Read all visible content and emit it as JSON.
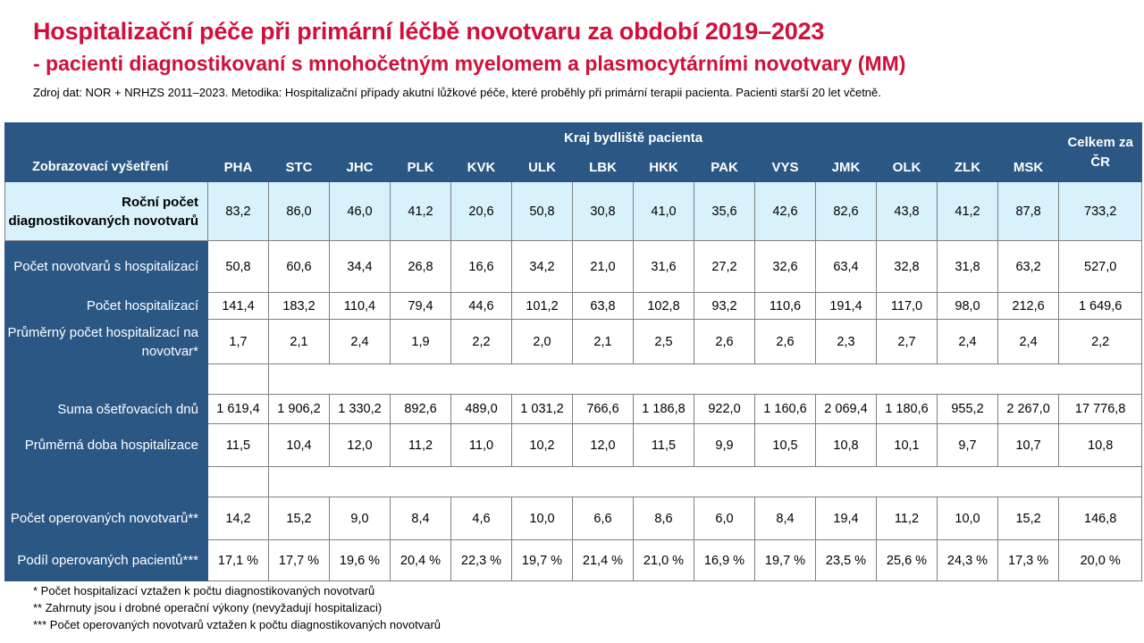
{
  "title": "Hospitalizační péče při primární léčbě novotvaru za období 2019–2023",
  "subtitle": "- pacienti diagnostikovaní s mnohočetným myelomem a plasmocytárními novotvary (MM)",
  "source": "Zdroj dat: NOR + NRHZS 2011–2023. Metodika: Hospitalizační případy akutní lůžkové péče, které proběhly při primární terapii pacienta. Pacienti starší 20 let včetně.",
  "table": {
    "group_header": "Kraj bydliště pacienta",
    "first_col_header": "Zobrazovací vyšetření",
    "total_header": "Celkem za ČR",
    "regions": [
      "PHA",
      "STC",
      "JHC",
      "PLK",
      "KVK",
      "ULK",
      "LBK",
      "HKK",
      "PAK",
      "VYS",
      "JMK",
      "OLK",
      "ZLK",
      "MSK"
    ],
    "rows": [
      {
        "label": "Roční počet diagnostikovaných novotvarů",
        "values": [
          "83,2",
          "86,0",
          "46,0",
          "41,2",
          "20,6",
          "50,8",
          "30,8",
          "41,0",
          "35,6",
          "42,6",
          "82,6",
          "43,8",
          "41,2",
          "87,8"
        ],
        "total": "733,2"
      },
      {
        "label": "Počet novotvarů s hospitalizací",
        "values": [
          "50,8",
          "60,6",
          "34,4",
          "26,8",
          "16,6",
          "34,2",
          "21,0",
          "31,6",
          "27,2",
          "32,6",
          "63,4",
          "32,8",
          "31,8",
          "63,2"
        ],
        "total": "527,0"
      },
      {
        "label": "Počet hospitalizací",
        "values": [
          "141,4",
          "183,2",
          "110,4",
          "79,4",
          "44,6",
          "101,2",
          "63,8",
          "102,8",
          "93,2",
          "110,6",
          "191,4",
          "117,0",
          "98,0",
          "212,6"
        ],
        "total": "1 649,6"
      },
      {
        "label": "Průměrný počet hospitalizací na novotvar*",
        "values": [
          "1,7",
          "2,1",
          "2,4",
          "1,9",
          "2,2",
          "2,0",
          "2,1",
          "2,5",
          "2,6",
          "2,6",
          "2,3",
          "2,7",
          "2,4",
          "2,4"
        ],
        "total": "2,2"
      },
      {
        "label": "Suma ošetřovacích dnů",
        "values": [
          "1 619,4",
          "1 906,2",
          "1 330,2",
          "892,6",
          "489,0",
          "1 031,2",
          "766,6",
          "1 186,8",
          "922,0",
          "1 160,6",
          "2 069,4",
          "1 180,6",
          "955,2",
          "2 267,0"
        ],
        "total": "17 776,8"
      },
      {
        "label": "Průměrná doba hospitalizace",
        "values": [
          "11,5",
          "10,4",
          "12,0",
          "11,2",
          "11,0",
          "10,2",
          "12,0",
          "11,5",
          "9,9",
          "10,5",
          "10,8",
          "10,1",
          "9,7",
          "10,7"
        ],
        "total": "10,8"
      },
      {
        "label": "Počet operovaných novotvarů**",
        "values": [
          "14,2",
          "15,2",
          "9,0",
          "8,4",
          "4,6",
          "10,0",
          "6,6",
          "8,6",
          "6,0",
          "8,4",
          "19,4",
          "11,2",
          "10,0",
          "15,2"
        ],
        "total": "146,8"
      },
      {
        "label": "Podíl operovaných pacientů***",
        "values": [
          "17,1 %",
          "17,7 %",
          "19,6 %",
          "20,4 %",
          "22,3 %",
          "19,7 %",
          "21,4 %",
          "21,0 %",
          "16,9 %",
          "19,7 %",
          "23,5 %",
          "25,6 %",
          "24,3 %",
          "17,3 %"
        ],
        "total": "20,0 %"
      }
    ]
  },
  "footnotes": [
    "* Počet hospitalizací vztažen k počtu diagnostikovaných novotvarů",
    "** Zahrnuty jsou i drobné operační výkony (nevyžadují hospitalizaci)",
    "*** Počet operovaných novotvarů vztažen k počtu diagnostikovaných novotvarů"
  ],
  "colors": {
    "title": "#d0103a",
    "header_bg": "#2b5785",
    "highlight_row": "#d9f1fb"
  }
}
